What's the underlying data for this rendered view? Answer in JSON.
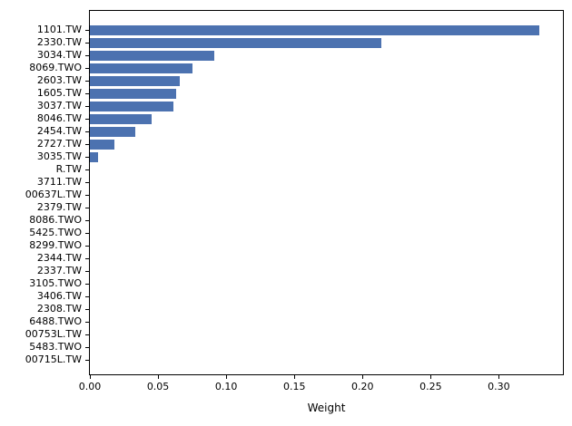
{
  "chart_data": {
    "type": "bar",
    "orientation": "horizontal",
    "title": "",
    "xlabel": "Weight",
    "ylabel": "",
    "categories": [
      "1101.TW",
      "2330.TW",
      "3034.TW",
      "8069.TWO",
      "2603.TW",
      "1605.TW",
      "3037.TW",
      "8046.TW",
      "2454.TW",
      "2727.TW",
      "3035.TW",
      "R.TW",
      "3711.TW",
      "00637L.TW",
      "2379.TW",
      "8086.TWO",
      "5425.TWO",
      "8299.TWO",
      "2344.TW",
      "2337.TW",
      "3105.TWO",
      "3406.TW",
      "2308.TW",
      "6488.TWO",
      "00753L.TW",
      "5483.TWO",
      "00715L.TW"
    ],
    "values": [
      0.33,
      0.214,
      0.091,
      0.075,
      0.066,
      0.063,
      0.061,
      0.045,
      0.033,
      0.018,
      0.006,
      0,
      0,
      0,
      0,
      0,
      0,
      0,
      0,
      0,
      0,
      0,
      0,
      0,
      0,
      0,
      0
    ],
    "xlim": [
      0,
      0.347
    ],
    "xticks": [
      0,
      0.05,
      0.1,
      0.15,
      0.2,
      0.25,
      0.3
    ],
    "xtick_labels": [
      "0.00",
      "0.05",
      "0.10",
      "0.15",
      "0.20",
      "0.25",
      "0.30"
    ],
    "bar_color": "#4C72B0",
    "grid": false,
    "legend_position": "none"
  }
}
